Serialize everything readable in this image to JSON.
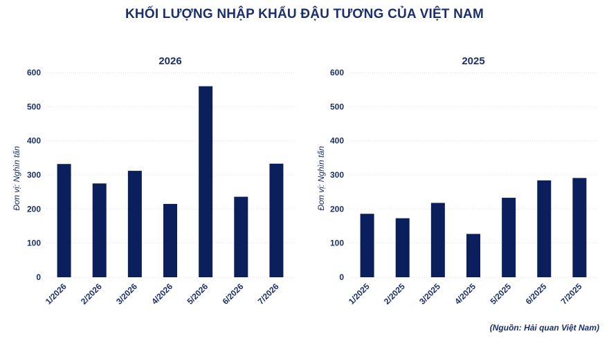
{
  "title": "KHỐI LƯỢNG NHẬP KHẨU ĐẬU TƯƠNG CỦA VIỆT NAM",
  "source": "(Nguồn: Hải quan Việt Nam)",
  "colors": {
    "bar": "#0b1f5c",
    "text": "#1a2f6b"
  },
  "chart_data": [
    {
      "type": "bar",
      "title": "2026",
      "ylabel": "Đơn vị: Nghìn tấn",
      "categories": [
        "1/2026",
        "2/2026",
        "3/2026",
        "4/2026",
        "5/2026",
        "6/2026",
        "7/2026"
      ],
      "values": [
        332,
        275,
        312,
        215,
        560,
        236,
        333
      ],
      "ylim": [
        0,
        600
      ],
      "yticks": [
        0,
        100,
        200,
        300,
        400,
        500,
        600
      ],
      "grid": true
    },
    {
      "type": "bar",
      "title": "2025",
      "ylabel": "Đơn vị: Nghìn tấn",
      "categories": [
        "1/2025",
        "2/2025",
        "3/2025",
        "4/2025",
        "5/2025",
        "6/2025",
        "7/2025"
      ],
      "values": [
        186,
        173,
        218,
        127,
        233,
        284,
        291
      ],
      "ylim": [
        0,
        600
      ],
      "yticks": [
        0,
        100,
        200,
        300,
        400,
        500,
        600
      ],
      "grid": true
    }
  ]
}
